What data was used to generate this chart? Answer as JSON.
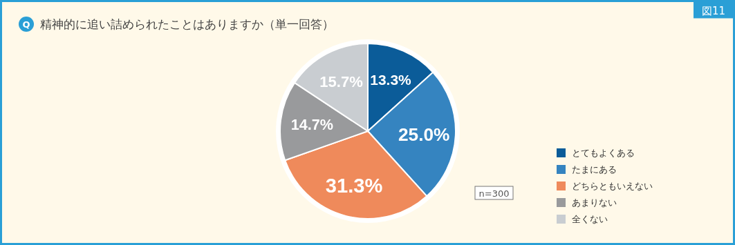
{
  "chart_data": {
    "type": "pie",
    "title": "精神的に追い詰められたことはありますか（単一回答）",
    "categories": [
      "とてもよくある",
      "たまにある",
      "どちらともいえない",
      "あまりない",
      "全くない"
    ],
    "values": [
      13.3,
      25.0,
      31.3,
      14.7,
      15.7
    ],
    "colors": [
      "#0b5c99",
      "#3584c0",
      "#ef8a5b",
      "#999a9c",
      "#c9cdd1"
    ],
    "value_labels": [
      "13.3%",
      "25.0%",
      "31.3%",
      "14.7%",
      "15.7%"
    ],
    "legend": "bottom right",
    "annotations": [
      "Q",
      "図11",
      "n=300"
    ]
  }
}
